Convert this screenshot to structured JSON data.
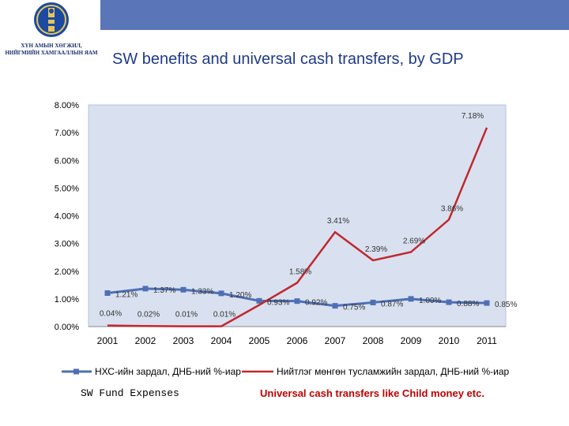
{
  "header": {
    "ministry_line1": "ХҮН АМЫН ХӨГЖИЛ,",
    "ministry_line2": "НИЙГМИЙН ХАМГААЛЛЫН ЯАМ",
    "title": "SW benefits and universal cash transfers, by GDP"
  },
  "chart_data": {
    "type": "line",
    "categories": [
      "2001",
      "2002",
      "2003",
      "2004",
      "2005",
      "2006",
      "2007",
      "2008",
      "2009",
      "2010",
      "2011"
    ],
    "y_ticks": [
      "0.00%",
      "1.00%",
      "2.00%",
      "3.00%",
      "4.00%",
      "5.00%",
      "6.00%",
      "7.00%",
      "8.00%"
    ],
    "ylim": [
      0,
      8
    ],
    "grid": false,
    "legend_position": "bottom",
    "series": [
      {
        "name": "НХС-ийн зардал, ДНБ-ний %-иар",
        "color": "#4f6fb5",
        "values": [
          1.21,
          1.37,
          1.33,
          1.2,
          0.93,
          0.92,
          0.75,
          0.87,
          1.0,
          0.88,
          0.85
        ],
        "labels": [
          "1.21%",
          "1.37%",
          "1.33%",
          "1.20%",
          "0.93%",
          "0.92%",
          "0.75%",
          "0.87%",
          "1.00%",
          "0.88%",
          "0.85%"
        ]
      },
      {
        "name": "Нийтлэг мөнгөн тусламжийн зардал, ДНБ-ний %-иар",
        "color": "#c0282d",
        "values": [
          0.04,
          0.02,
          0.01,
          0.01,
          0.78,
          1.58,
          3.41,
          2.39,
          2.69,
          3.86,
          7.18
        ],
        "labels": [
          "0.04%",
          "0.02%",
          "0.01%",
          "0.01%",
          "",
          "1.58%",
          "3.41%",
          "2.39%",
          "2.69%",
          "3.86%",
          "7.18%"
        ]
      }
    ]
  },
  "captions": {
    "left": "SW Fund Expenses",
    "right": "Universal cash transfers like Child money etc."
  },
  "colors": {
    "plot_background": "#d9e1f0",
    "header_bar": "#5b76b8"
  }
}
